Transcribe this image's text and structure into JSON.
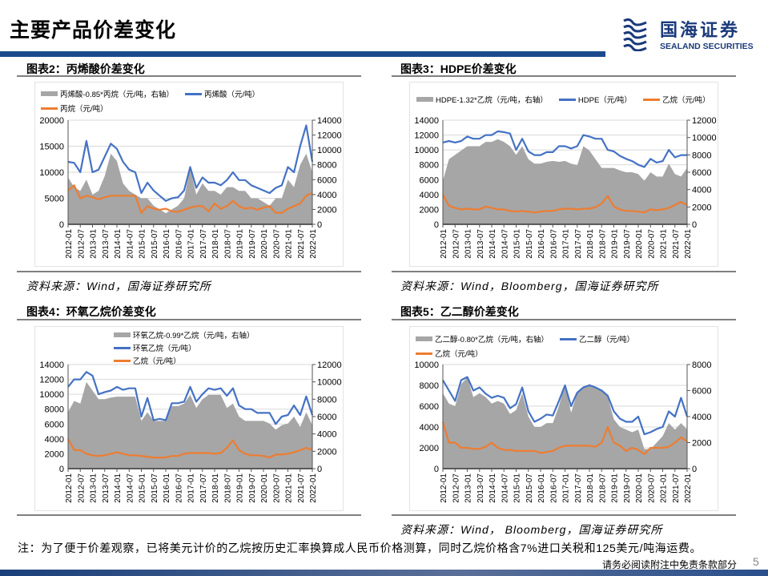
{
  "header": {
    "title": "主要产品价差变化",
    "logo_cn": "国海证券",
    "logo_en": "SEALAND SECURITIES"
  },
  "colors": {
    "accent": "#1a4a8c",
    "area": "#a6a6a6",
    "blue": "#4472c4",
    "orange": "#ed7d31"
  },
  "note": "注：为了便于价差观察，已将美元计价的乙烷按历史汇率换算成人民币价格测算，同时乙烷价格含7%进口关税和125美元/吨海运费。",
  "footer": {
    "disclaimer": "请务必阅读附注中免责条款部分",
    "page": "5"
  },
  "chart_data": [
    {
      "type": "line+area",
      "title": "图表2：丙烯酸价差变化",
      "source": "资料来源：Wind，国海证券研究所",
      "legend": [
        "丙烯酸-0.85*丙烷（元/吨，右轴）",
        "丙烯酸（元/吨）",
        "丙烷（元/吨）"
      ],
      "ylim_left": [
        0,
        20000
      ],
      "yticks_left": [
        "0",
        "5000",
        "10000",
        "15000",
        "20000"
      ],
      "ylim_right": [
        0,
        14000
      ],
      "yticks_right": [
        "0",
        "2000",
        "4000",
        "6000",
        "8000",
        "10000",
        "12000",
        "14000"
      ],
      "xticks": [
        "2012-01",
        "2012-07",
        "2013-01",
        "2013-07",
        "2014-01",
        "2014-07",
        "2015-01",
        "2015-07",
        "2016-01",
        "2016-07",
        "2017-01",
        "2017-07",
        "2018-01",
        "2018-07",
        "2019-01",
        "2019-07",
        "2020-01",
        "2020-07",
        "2021-01",
        "2021-07",
        "2022-01"
      ],
      "x_frequency": "quarterly 2012Q1-2022Q1",
      "series": [
        {
          "name": "丙烯酸-0.85*丙烷（元/吨，右轴）",
          "axis": "right",
          "type": "area",
          "values": [
            6300,
            5000,
            4500,
            6000,
            4000,
            4500,
            6500,
            9500,
            8500,
            5500,
            4500,
            4000,
            3500,
            3500,
            2500,
            2000,
            1500,
            2000,
            2500,
            3500,
            7500,
            4000,
            5500,
            4500,
            4500,
            4000,
            5000,
            5000,
            4500,
            4500,
            3500,
            3500,
            3000,
            2500,
            3500,
            3500,
            6000,
            5000,
            8000,
            9500,
            7000
          ]
        },
        {
          "name": "丙烯酸（元/吨）",
          "axis": "left",
          "type": "line",
          "values": [
            12000,
            11800,
            10000,
            16000,
            10000,
            10500,
            13000,
            15500,
            14500,
            12000,
            10500,
            10000,
            6000,
            8000,
            6500,
            5500,
            4500,
            5000,
            5200,
            6500,
            11000,
            7000,
            9000,
            8000,
            8000,
            7500,
            8500,
            10000,
            8500,
            8500,
            7500,
            7000,
            6500,
            6000,
            7000,
            7500,
            11000,
            10000,
            15000,
            19000,
            12000
          ]
        },
        {
          "name": "丙烷（元/吨）",
          "axis": "left",
          "type": "line",
          "values": [
            6500,
            7500,
            5000,
            5500,
            5200,
            4800,
            5200,
            5500,
            5500,
            5500,
            5500,
            5500,
            2200,
            3500,
            3000,
            2800,
            3000,
            2500,
            2400,
            2800,
            3200,
            3500,
            3500,
            2500,
            4000,
            3000,
            3500,
            4500,
            3500,
            3000,
            3200,
            2800,
            3200,
            3500,
            2200,
            2200,
            3000,
            3500,
            4000,
            5500,
            6000
          ]
        }
      ]
    },
    {
      "type": "line+area",
      "title": "图表3：HDPE价差变化",
      "source": "资料来源：Wind，Bloomberg，国海证券研究所",
      "legend": [
        "HDPE-1.32*乙烷（元/吨，右轴）",
        "HDPE（元/吨）",
        "乙烷（元/吨）"
      ],
      "ylim_left": [
        0,
        14000
      ],
      "yticks_left": [
        "0",
        "2000",
        "4000",
        "6000",
        "8000",
        "10000",
        "12000",
        "14000"
      ],
      "ylim_right": [
        0,
        12000
      ],
      "yticks_right": [
        "0",
        "2000",
        "4000",
        "6000",
        "8000",
        "10000",
        "12000"
      ],
      "xticks": [
        "2012-01",
        "2012-07",
        "2013-01",
        "2013-07",
        "2014-01",
        "2014-07",
        "2015-01",
        "2015-07",
        "2016-01",
        "2016-07",
        "2017-01",
        "2017-07",
        "2018-01",
        "2018-07",
        "2019-01",
        "2019-07",
        "2020-01",
        "2020-07",
        "2021-01",
        "2021-07",
        "2022-01"
      ],
      "x_frequency": "quarterly 2012Q1-2022Q1",
      "series": [
        {
          "name": "HDPE-1.32*乙烷（元/吨，右轴）",
          "axis": "right",
          "type": "area",
          "values": [
            5000,
            7500,
            8000,
            8500,
            9000,
            9000,
            9000,
            9500,
            9500,
            9800,
            9500,
            9000,
            8000,
            9000,
            7500,
            7000,
            7000,
            7200,
            7300,
            7200,
            7300,
            7000,
            6800,
            9000,
            8500,
            7500,
            6500,
            6500,
            6500,
            6200,
            6000,
            6000,
            5800,
            5000,
            6000,
            5500,
            5500,
            7000,
            5800,
            5500,
            6500
          ]
        },
        {
          "name": "HDPE（元/吨）",
          "axis": "left",
          "type": "line",
          "values": [
            11000,
            11200,
            11000,
            11200,
            11800,
            11500,
            11500,
            12000,
            12000,
            12500,
            12400,
            12200,
            10000,
            11500,
            9800,
            9300,
            9300,
            9700,
            9700,
            10500,
            10500,
            10200,
            10500,
            12000,
            11800,
            11500,
            11500,
            10000,
            9800,
            9200,
            8800,
            8500,
            8000,
            7700,
            8800,
            8300,
            8500,
            10000,
            9000,
            9300,
            9300
          ]
        },
        {
          "name": "乙烷（元/吨）",
          "axis": "left",
          "type": "line",
          "values": [
            4000,
            2500,
            2200,
            2000,
            2100,
            2000,
            2000,
            2400,
            2200,
            2000,
            2000,
            1800,
            1700,
            1800,
            1700,
            1600,
            1700,
            1800,
            1800,
            2000,
            2100,
            2100,
            2000,
            2100,
            2100,
            2300,
            2800,
            3800,
            2400,
            2000,
            1800,
            1800,
            1700,
            1600,
            2000,
            1900,
            2000,
            2200,
            2600,
            3000,
            2600
          ]
        }
      ]
    },
    {
      "type": "line+area",
      "title": "图表4：环氧乙烷价差变化",
      "source": "",
      "legend": [
        "环氧乙烷-0.99*乙烷（元/吨，右轴）",
        "环氧乙烷（元/吨）",
        "乙烷（元/吨）"
      ],
      "ylim_left": [
        0,
        14000
      ],
      "yticks_left": [
        "0",
        "2000",
        "4000",
        "6000",
        "8000",
        "10000",
        "12000",
        "14000"
      ],
      "ylim_right": [
        0,
        12000
      ],
      "yticks_right": [
        "0",
        "2000",
        "4000",
        "6000",
        "8000",
        "10000",
        "12000"
      ],
      "xticks": [
        "2012-01",
        "2012-07",
        "2013-01",
        "2013-07",
        "2014-01",
        "2014-07",
        "2015-01",
        "2015-07",
        "2016-01",
        "2016-07",
        "2017-01",
        "2017-07",
        "2018-01",
        "2018-07",
        "2019-01",
        "2019-07",
        "2020-01",
        "2020-07",
        "2021-01",
        "2021-07",
        "2022-01"
      ],
      "x_frequency": "quarterly 2012Q1-2022Q1",
      "series": [
        {
          "name": "环氧乙烷-0.99*乙烷（元/吨，右轴）",
          "axis": "right",
          "type": "area",
          "values": [
            6500,
            7800,
            7500,
            10000,
            9000,
            8000,
            8000,
            8200,
            8300,
            8300,
            8300,
            8300,
            5500,
            6500,
            5500,
            5500,
            5500,
            7200,
            7200,
            7500,
            8500,
            7000,
            8000,
            8500,
            8500,
            8500,
            7000,
            7500,
            6000,
            5500,
            5500,
            5500,
            5500,
            5200,
            4500,
            5000,
            5200,
            6000,
            4800,
            6500,
            5000
          ]
        },
        {
          "name": "环氧乙烷（元/吨）",
          "axis": "left",
          "type": "line",
          "values": [
            11000,
            12000,
            12000,
            13000,
            12500,
            10000,
            10300,
            10500,
            11000,
            10600,
            10800,
            10800,
            7000,
            9500,
            6500,
            6700,
            6500,
            8800,
            8800,
            9000,
            11000,
            9000,
            10000,
            10800,
            10600,
            10800,
            9800,
            10800,
            8500,
            8000,
            8000,
            7500,
            7500,
            7500,
            6000,
            7000,
            7200,
            8500,
            7200,
            9700,
            7200
          ]
        },
        {
          "name": "乙烷（元/吨）",
          "axis": "left",
          "type": "line",
          "values": [
            4000,
            2500,
            2500,
            2000,
            1800,
            1700,
            1800,
            2000,
            2200,
            2000,
            1800,
            1800,
            1700,
            1600,
            1500,
            1500,
            1500,
            1700,
            1700,
            2000,
            2100,
            2100,
            2100,
            2100,
            2000,
            2100,
            2800,
            3800,
            2500,
            2000,
            1800,
            1800,
            1700,
            1500,
            1900,
            1900,
            2000,
            2200,
            2500,
            2800,
            2500
          ]
        }
      ]
    },
    {
      "type": "line+area",
      "title": "图表5：乙二醇价差变化",
      "source": "资料来源：Wind， Bloomberg，国海证券研究所",
      "legend": [
        "乙二醇-0.80*乙烷（元/吨，右轴）",
        "乙二醇（元/吨）",
        "乙烷（元/吨）"
      ],
      "ylim_left": [
        0,
        10000
      ],
      "yticks_left": [
        "0",
        "2000",
        "4000",
        "6000",
        "8000",
        "10000"
      ],
      "ylim_right": [
        0,
        8000
      ],
      "yticks_right": [
        "0",
        "2000",
        "4000",
        "6000",
        "8000"
      ],
      "xticks": [
        "2012-01",
        "2012-07",
        "2013-01",
        "2013-07",
        "2014-01",
        "2014-07",
        "2015-01",
        "2015-07",
        "2016-01",
        "2016-07",
        "2017-01",
        "2017-07",
        "2018-01",
        "2018-07",
        "2019-01",
        "2019-07",
        "2020-01",
        "2020-07",
        "2021-01",
        "2021-07",
        "2022-01"
      ],
      "x_frequency": "quarterly 2012Q1-2022Q1",
      "series": [
        {
          "name": "乙二醇-0.80*乙烷（元/吨，右轴）",
          "axis": "right",
          "type": "area",
          "values": [
            5800,
            5000,
            4800,
            6500,
            7000,
            5500,
            5800,
            5500,
            5000,
            5200,
            5000,
            4200,
            4500,
            5800,
            4000,
            3200,
            3200,
            3500,
            3500,
            4800,
            6500,
            4300,
            5800,
            6200,
            6500,
            6300,
            6000,
            5500,
            3800,
            3200,
            3000,
            2800,
            3000,
            1500,
            1500,
            2000,
            2500,
            3500,
            3000,
            3500,
            3000
          ]
        },
        {
          "name": "乙二醇（元/吨）",
          "axis": "left",
          "type": "line",
          "values": [
            8500,
            7500,
            6500,
            8500,
            8800,
            7500,
            7800,
            7200,
            6800,
            7000,
            6800,
            5800,
            6200,
            7800,
            5500,
            4500,
            4800,
            5200,
            5100,
            6500,
            8000,
            6000,
            7300,
            7800,
            8000,
            7800,
            7500,
            7000,
            5500,
            4800,
            4500,
            4500,
            5000,
            3300,
            3500,
            3800,
            4000,
            5500,
            5000,
            6800,
            5000
          ]
        },
        {
          "name": "乙烷（元/吨）",
          "axis": "left",
          "type": "line",
          "values": [
            4500,
            2500,
            2500,
            2000,
            2000,
            1900,
            1900,
            2100,
            2500,
            2000,
            1800,
            1800,
            1700,
            1700,
            1700,
            1700,
            1500,
            1600,
            1700,
            2000,
            2200,
            2200,
            2200,
            2200,
            2200,
            2100,
            2500,
            4000,
            2500,
            2200,
            1700,
            2000,
            1800,
            1400,
            2000,
            2000,
            2000,
            2100,
            2500,
            3000,
            2600
          ]
        }
      ]
    }
  ]
}
